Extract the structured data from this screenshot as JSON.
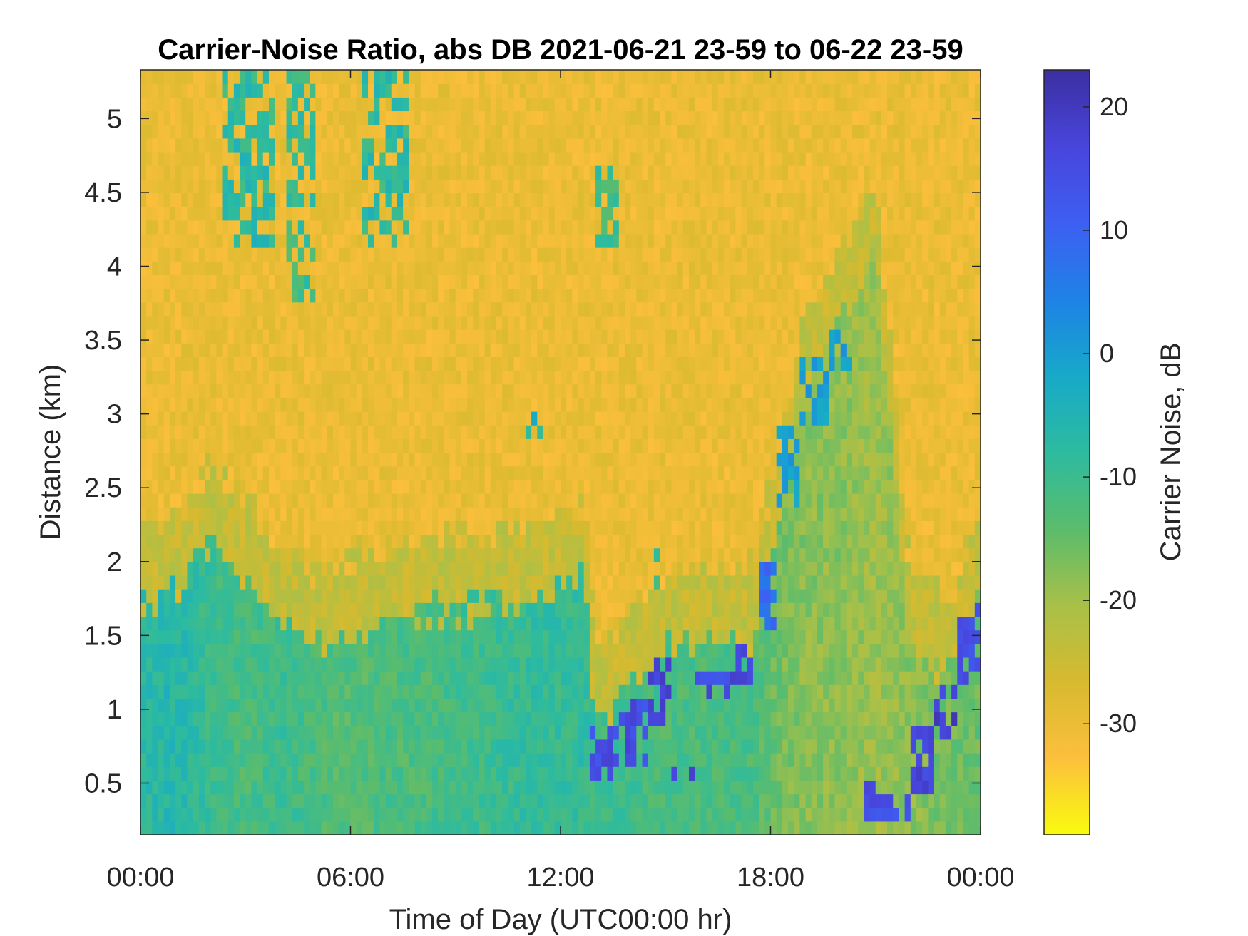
{
  "chart_data": {
    "type": "heatmap",
    "title": "Carrier-Noise Ratio, abs DB 2021-06-21 23-59 to 06-22 23-59",
    "xlabel": "Time of Day (UTC00:00 hr)",
    "ylabel": "Distance (km)",
    "x_ticks": [
      {
        "hours": 0,
        "label": "00:00"
      },
      {
        "hours": 6,
        "label": "06:00"
      },
      {
        "hours": 12,
        "label": "12:00"
      },
      {
        "hours": 18,
        "label": "18:00"
      },
      {
        "hours": 24,
        "label": "00:00"
      }
    ],
    "y_ticks": [
      {
        "km": 0.5,
        "label": "0.5"
      },
      {
        "km": 1,
        "label": "1"
      },
      {
        "km": 1.5,
        "label": "1.5"
      },
      {
        "km": 2,
        "label": "2"
      },
      {
        "km": 2.5,
        "label": "2.5"
      },
      {
        "km": 3,
        "label": "3"
      },
      {
        "km": 3.5,
        "label": "3.5"
      },
      {
        "km": 4,
        "label": "4"
      },
      {
        "km": 4.5,
        "label": "4.5"
      },
      {
        "km": 5,
        "label": "5"
      }
    ],
    "xlim": [
      0,
      24
    ],
    "ylim": [
      0.15,
      5.33
    ],
    "colorbar": {
      "label": "Carrier Noise, dB",
      "clim": [
        -39,
        23
      ],
      "ticks": [
        {
          "value": 20,
          "label": "20"
        },
        {
          "value": 10,
          "label": "10"
        },
        {
          "value": 0,
          "label": "0"
        },
        {
          "value": -10,
          "label": "-10"
        },
        {
          "value": -20,
          "label": "-20"
        },
        {
          "value": -30,
          "label": "-30"
        }
      ],
      "colormap": [
        "#f9fb0e",
        "#fcbf3c",
        "#d7ba2f",
        "#a8c048",
        "#5bbc6c",
        "#2dbb9f",
        "#17a9c9",
        "#1e82e6",
        "#3e5ff2",
        "#4845dc",
        "#3b2fa0"
      ]
    },
    "grid": false,
    "regions": {
      "background_db": -30,
      "lower_layer": [
        {
          "t": 0,
          "top_km": 1.75,
          "db": -8
        },
        {
          "t": 1,
          "top_km": 1.8,
          "db": -6
        },
        {
          "t": 2,
          "top_km": 2.2,
          "db": -10
        },
        {
          "t": 3,
          "top_km": 1.9,
          "db": -12
        },
        {
          "t": 4,
          "top_km": 1.6,
          "db": -10
        },
        {
          "t": 5,
          "top_km": 1.4,
          "db": -12
        },
        {
          "t": 6,
          "top_km": 1.5,
          "db": -13
        },
        {
          "t": 7,
          "top_km": 1.6,
          "db": -12
        },
        {
          "t": 8,
          "top_km": 1.7,
          "db": -12
        },
        {
          "t": 9,
          "top_km": 1.65,
          "db": -11
        },
        {
          "t": 10,
          "top_km": 1.7,
          "db": -10
        },
        {
          "t": 11,
          "top_km": 1.75,
          "db": -9
        },
        {
          "t": 12,
          "top_km": 1.85,
          "db": -9
        },
        {
          "t": 12.7,
          "top_km": 1.9,
          "db": -9
        },
        {
          "t": 13,
          "top_km": 0.9,
          "db": -10
        },
        {
          "t": 15,
          "top_km": 1.4,
          "db": -12
        },
        {
          "t": 17.5,
          "top_km": 1.5,
          "db": -12
        },
        {
          "t": 18,
          "top_km": 2.0,
          "db": -15
        },
        {
          "t": 19,
          "top_km": 3.2,
          "db": -18
        },
        {
          "t": 20,
          "top_km": 3.6,
          "db": -18
        },
        {
          "t": 21,
          "top_km": 4.1,
          "db": -20
        },
        {
          "t": 22,
          "top_km": 1.4,
          "db": -18
        },
        {
          "t": 23,
          "top_km": 1.2,
          "db": -16
        },
        {
          "t": 24,
          "top_km": 1.8,
          "db": -15
        }
      ],
      "strong_returns": [
        {
          "t0": 12.8,
          "t1": 13.6,
          "k0": 0.5,
          "k1": 0.85,
          "db": 15
        },
        {
          "t0": 13.6,
          "t1": 14.5,
          "k0": 0.6,
          "k1": 1.05,
          "db": 15
        },
        {
          "t0": 14.5,
          "t1": 15.2,
          "k0": 0.9,
          "k1": 1.35,
          "db": 17
        },
        {
          "t0": 15.2,
          "t1": 15.9,
          "k0": 0.5,
          "k1": 0.65,
          "db": 16
        },
        {
          "t0": 15.9,
          "t1": 16.8,
          "k0": 1.1,
          "k1": 1.3,
          "db": 15
        },
        {
          "t0": 16.8,
          "t1": 17.5,
          "k0": 1.2,
          "k1": 1.45,
          "db": 18
        },
        {
          "t0": 17.7,
          "t1": 18.2,
          "k0": 1.55,
          "k1": 2.0,
          "db": 8
        },
        {
          "t0": 18.2,
          "t1": 18.9,
          "k0": 2.4,
          "k1": 2.9,
          "db": 0
        },
        {
          "t0": 18.9,
          "t1": 19.6,
          "k0": 2.9,
          "k1": 3.4,
          "db": 0
        },
        {
          "t0": 19.6,
          "t1": 20.3,
          "k0": 3.3,
          "k1": 3.6,
          "db": 0
        },
        {
          "t0": 20.7,
          "t1": 21.1,
          "k0": 0.2,
          "k1": 0.5,
          "db": 14
        },
        {
          "t0": 21.1,
          "t1": 22.0,
          "k0": 0.2,
          "k1": 0.45,
          "db": 14
        },
        {
          "t0": 22.0,
          "t1": 22.6,
          "k0": 0.45,
          "k1": 0.85,
          "db": 17
        },
        {
          "t0": 22.6,
          "t1": 23.3,
          "k0": 0.8,
          "k1": 1.2,
          "db": 18
        },
        {
          "t0": 23.3,
          "t1": 24.0,
          "k0": 1.15,
          "k1": 1.7,
          "db": 15
        }
      ],
      "upper_plumes": [
        {
          "t0": 2.4,
          "t1": 3.9,
          "k0": 4.1,
          "k1": 5.33,
          "db": -8
        },
        {
          "t0": 4.2,
          "t1": 5.0,
          "k0": 3.8,
          "k1": 5.33,
          "db": -10
        },
        {
          "t0": 6.3,
          "t1": 7.6,
          "k0": 4.1,
          "k1": 5.33,
          "db": -8
        },
        {
          "t0": 10.9,
          "t1": 11.5,
          "k0": 2.85,
          "k1": 3.05,
          "db": -6
        },
        {
          "t0": 13.0,
          "t1": 13.6,
          "k0": 4.1,
          "k1": 4.7,
          "db": -10
        },
        {
          "t0": 14.6,
          "t1": 14.8,
          "k0": 1.8,
          "k1": 2.1,
          "db": -8
        }
      ]
    }
  }
}
